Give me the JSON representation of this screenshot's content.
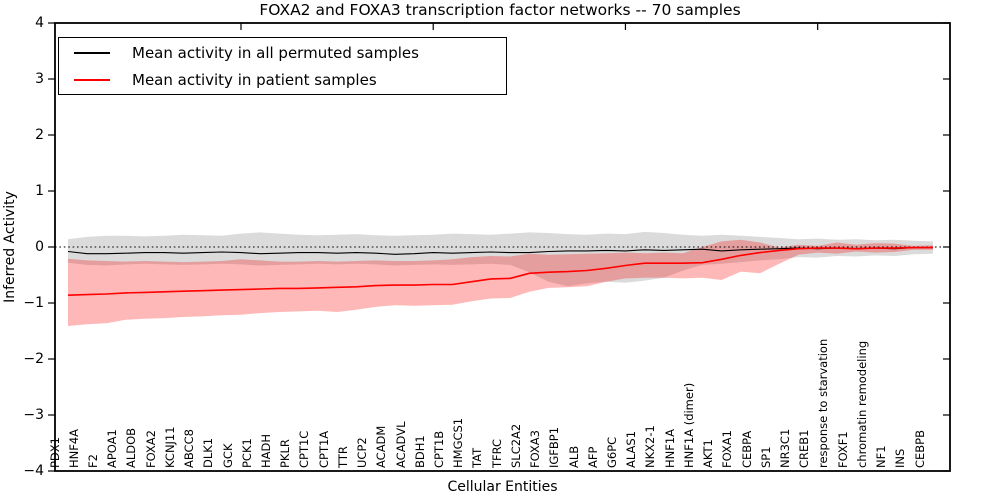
{
  "chart_data": {
    "type": "line",
    "title": "FOXA2 and FOXA3 transcription factor networks -- 70 samples",
    "xlabel": "Cellular Entities",
    "ylabel": "Inferred Activity",
    "ylim": [
      -4,
      4
    ],
    "yticks": [
      4,
      3,
      2,
      1,
      0,
      -1,
      -2,
      -3,
      -4
    ],
    "grid": false,
    "zero_reference_line": {
      "style": "dotted",
      "color": "#000000",
      "y": 0
    },
    "legend_position": "upper left",
    "top_axis_tick_x_indices": [
      9,
      19,
      29,
      39
    ],
    "categories": [
      "PDX1",
      "HNF4A",
      "F2",
      "APOA1",
      "ALDOB",
      "FOXA2",
      "KCNJ11",
      "ABCC8",
      "DLK1",
      "GCK",
      "PCK1",
      "HADH",
      "PKLR",
      "CPT1C",
      "CPT1A",
      "TTR",
      "UCP2",
      "ACADM",
      "ACADVL",
      "BDH1",
      "CPT1B",
      "HMGCS1",
      "TAT",
      "TFRC",
      "SLC2A2",
      "FOXA3",
      "IGFBP1",
      "ALB",
      "AFP",
      "G6PC",
      "ALAS1",
      "NKX2-1",
      "HNF1A",
      "HNF1A (dimer)",
      "AKT1",
      "FOXA1",
      "CEBPA",
      "SP1",
      "NR3C1",
      "CREB1",
      "response to starvation",
      "FOXF1",
      "chromatin remodeling",
      "NF1",
      "INS",
      "CEBPB"
    ],
    "series": [
      {
        "name": "Mean activity in all permuted samples",
        "color": "#000000",
        "line_width": 1.1,
        "band_color": "#7f7f7f",
        "band_opacity": 0.28,
        "values": [
          -0.08,
          -0.12,
          -0.12,
          -0.11,
          -0.1,
          -0.1,
          -0.11,
          -0.1,
          -0.09,
          -0.1,
          -0.12,
          -0.11,
          -0.1,
          -0.1,
          -0.11,
          -0.1,
          -0.11,
          -0.13,
          -0.12,
          -0.1,
          -0.11,
          -0.1,
          -0.09,
          -0.1,
          -0.1,
          -0.08,
          -0.07,
          -0.07,
          -0.06,
          -0.07,
          -0.05,
          -0.06,
          -0.05,
          -0.04,
          -0.07,
          -0.05,
          -0.04,
          -0.03,
          -0.02,
          -0.03,
          -0.02,
          -0.03,
          -0.02,
          -0.03,
          -0.01,
          -0.01
        ],
        "band_upper": [
          0.14,
          0.18,
          0.2,
          0.2,
          0.19,
          0.2,
          0.22,
          0.21,
          0.2,
          0.24,
          0.26,
          0.24,
          0.22,
          0.21,
          0.22,
          0.23,
          0.21,
          0.2,
          0.21,
          0.22,
          0.24,
          0.23,
          0.22,
          0.24,
          0.26,
          0.25,
          0.23,
          0.22,
          0.24,
          0.23,
          0.27,
          0.25,
          0.22,
          0.2,
          0.22,
          0.2,
          0.18,
          0.16,
          0.14,
          0.15,
          0.13,
          0.14,
          0.12,
          0.13,
          0.11,
          0.1
        ],
        "band_lower": [
          -0.28,
          -0.32,
          -0.33,
          -0.31,
          -0.3,
          -0.31,
          -0.32,
          -0.31,
          -0.3,
          -0.31,
          -0.33,
          -0.32,
          -0.31,
          -0.3,
          -0.31,
          -0.3,
          -0.31,
          -0.33,
          -0.32,
          -0.31,
          -0.32,
          -0.31,
          -0.3,
          -0.32,
          -0.45,
          -0.62,
          -0.7,
          -0.65,
          -0.62,
          -0.64,
          -0.6,
          -0.55,
          -0.42,
          -0.32,
          -0.3,
          -0.27,
          -0.24,
          -0.22,
          -0.18,
          -0.19,
          -0.16,
          -0.17,
          -0.15,
          -0.16,
          -0.13,
          -0.12
        ]
      },
      {
        "name": "Mean activity in patient samples",
        "color": "#ff0000",
        "line_width": 1.6,
        "band_color": "#ff0000",
        "band_opacity": 0.28,
        "values": [
          -0.86,
          -0.85,
          -0.84,
          -0.82,
          -0.81,
          -0.8,
          -0.79,
          -0.78,
          -0.77,
          -0.76,
          -0.75,
          -0.74,
          -0.74,
          -0.73,
          -0.72,
          -0.71,
          -0.69,
          -0.68,
          -0.68,
          -0.67,
          -0.67,
          -0.62,
          -0.57,
          -0.56,
          -0.47,
          -0.45,
          -0.44,
          -0.42,
          -0.38,
          -0.33,
          -0.29,
          -0.29,
          -0.29,
          -0.28,
          -0.22,
          -0.15,
          -0.1,
          -0.06,
          -0.03,
          -0.02,
          -0.02,
          -0.03,
          -0.02,
          -0.02,
          -0.01,
          -0.01
        ],
        "band_upper": [
          -0.21,
          -0.24,
          -0.25,
          -0.26,
          -0.25,
          -0.26,
          -0.27,
          -0.26,
          -0.25,
          -0.22,
          -0.24,
          -0.26,
          -0.26,
          -0.25,
          -0.26,
          -0.25,
          -0.24,
          -0.25,
          -0.25,
          -0.24,
          -0.22,
          -0.18,
          -0.16,
          -0.17,
          -0.12,
          -0.14,
          -0.13,
          -0.12,
          -0.11,
          -0.1,
          -0.11,
          -0.1,
          -0.11,
          0.0,
          0.1,
          0.13,
          0.08,
          -0.01,
          0.04,
          0.02,
          0.08,
          0.04,
          0.07,
          0.06,
          0.02,
          0.03
        ],
        "band_lower": [
          -1.41,
          -1.38,
          -1.36,
          -1.3,
          -1.28,
          -1.27,
          -1.25,
          -1.24,
          -1.22,
          -1.21,
          -1.18,
          -1.16,
          -1.15,
          -1.14,
          -1.16,
          -1.12,
          -1.07,
          -1.04,
          -1.05,
          -1.04,
          -1.03,
          -0.97,
          -0.92,
          -0.91,
          -0.8,
          -0.73,
          -0.72,
          -0.7,
          -0.62,
          -0.56,
          -0.55,
          -0.55,
          -0.56,
          -0.55,
          -0.59,
          -0.44,
          -0.47,
          -0.3,
          -0.14,
          -0.1,
          -0.12,
          -0.08,
          -0.1,
          -0.09,
          -0.05,
          -0.05
        ]
      }
    ]
  },
  "legend": {
    "items": [
      {
        "label": "Mean activity in all permuted samples",
        "color": "#000000"
      },
      {
        "label": "Mean activity in patient samples",
        "color": "#ff0000"
      }
    ]
  },
  "colors": {
    "axis": "#000000",
    "background": "#ffffff",
    "permuted_line": "#000000",
    "patient_line": "#ff0000",
    "permuted_band": "#7f7f7f",
    "patient_band": "#ff0000"
  }
}
